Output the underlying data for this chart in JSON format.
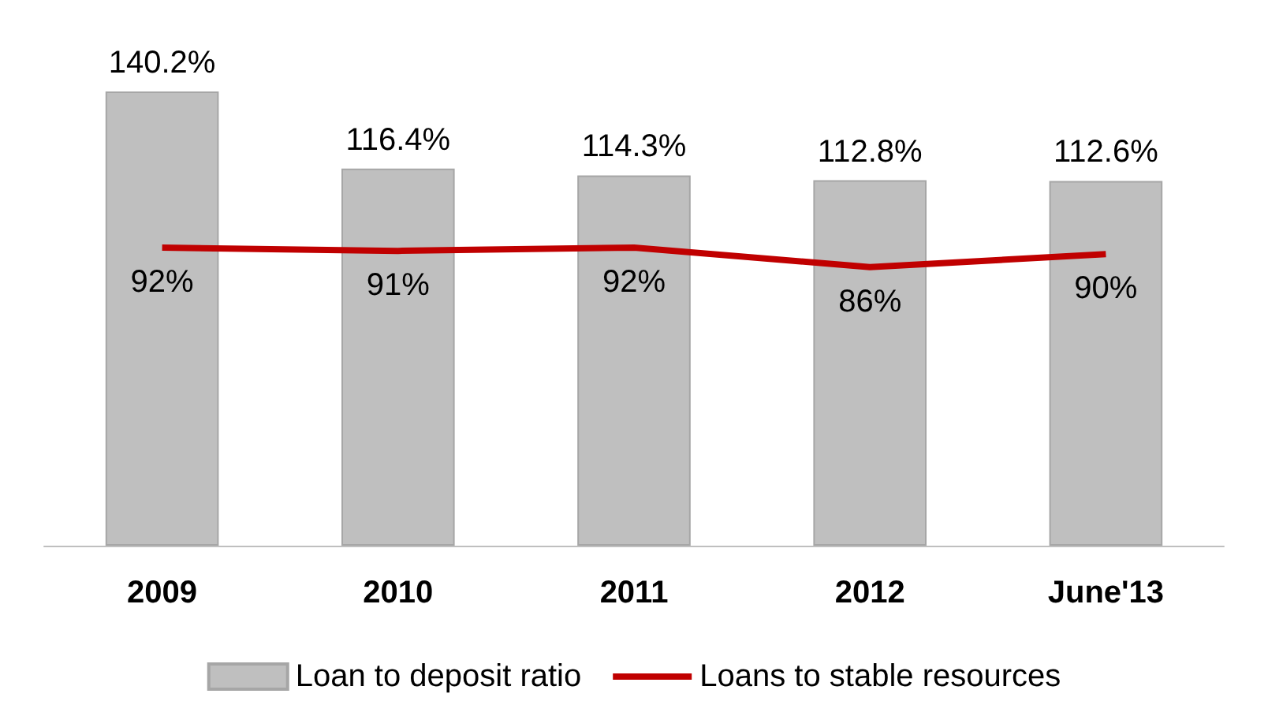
{
  "chart_data": {
    "type": "bar",
    "categories": [
      "2009",
      "2010",
      "2011",
      "2012",
      "June'13"
    ],
    "series": [
      {
        "name": "Loan to deposit ratio",
        "color": "#bfbfbf",
        "values": [
          140.2,
          116.4,
          114.3,
          112.8,
          112.6
        ],
        "value_labels": [
          "140.2%",
          "116.4%",
          "114.3%",
          "112.8%",
          "112.6%"
        ]
      },
      {
        "name": "Loans to stable resources",
        "type": "line",
        "color": "#c00000",
        "values": [
          92,
          91,
          92,
          86,
          90
        ],
        "value_labels": [
          "92%",
          "91%",
          "92%",
          "86%",
          "90%"
        ]
      }
    ],
    "legend": "bottom",
    "grid": false,
    "marker": "none"
  }
}
